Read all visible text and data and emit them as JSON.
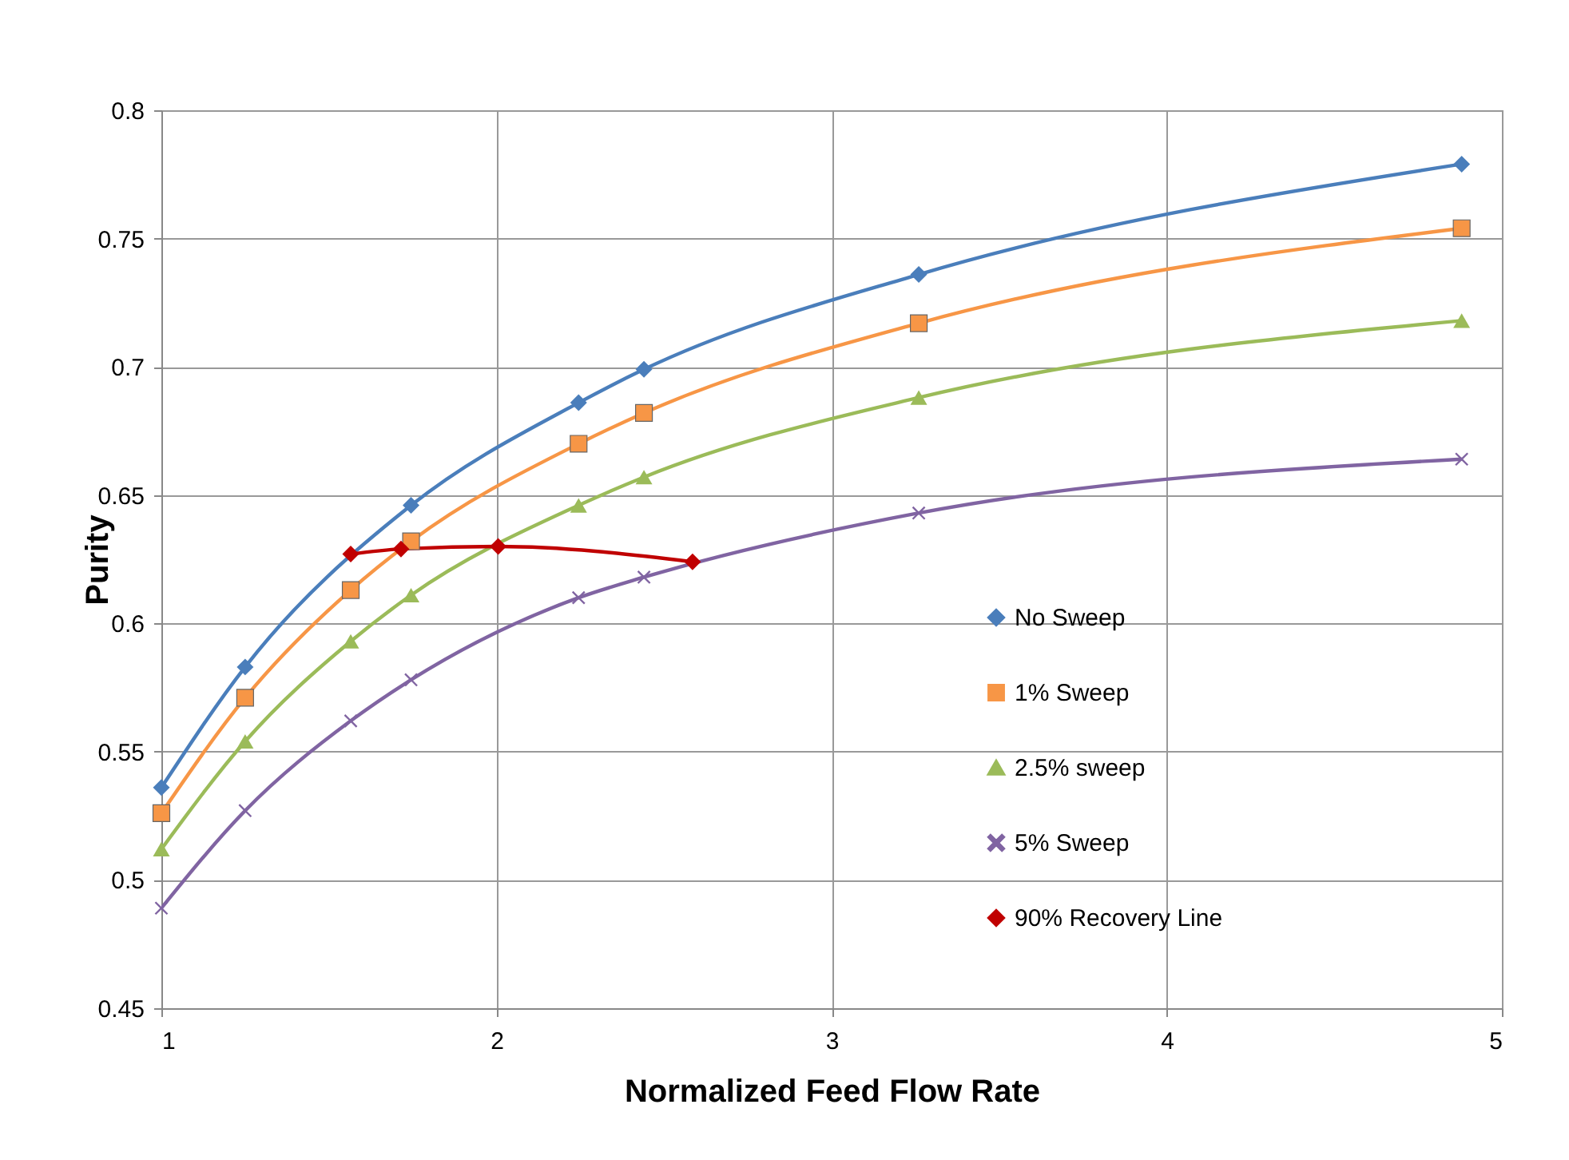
{
  "chart_data": {
    "type": "line",
    "xlabel": "Normalized Feed Flow Rate",
    "ylabel": "Purity",
    "x": [
      1,
      1.25,
      1.565,
      1.745,
      2.245,
      2.44,
      3.26,
      4.88
    ],
    "series": [
      {
        "name": "No Sweep",
        "color": "#4a7ebb",
        "marker": "diamond",
        "x": [
          1,
          1.25,
          1.745,
          2.245,
          2.44,
          3.26,
          4.88
        ],
        "values": [
          0.536,
          0.583,
          0.646,
          0.686,
          0.699,
          0.736,
          0.779
        ]
      },
      {
        "name": "1% Sweep",
        "color": "#f79646",
        "marker": "square",
        "values": [
          0.526,
          0.571,
          0.613,
          0.632,
          0.67,
          0.682,
          0.717,
          0.754
        ]
      },
      {
        "name": "2.5% sweep",
        "color": "#9bbb59",
        "marker": "triangle",
        "values": [
          0.512,
          0.554,
          0.593,
          0.611,
          0.646,
          0.657,
          0.688,
          0.718
        ]
      },
      {
        "name": "5% Sweep",
        "color": "#8064a2",
        "marker": "cross",
        "values": [
          0.489,
          0.527,
          0.562,
          0.578,
          0.61,
          0.618,
          0.643,
          0.664
        ]
      },
      {
        "name": "90% Recovery Line",
        "color": "#c00000",
        "marker": "diamond",
        "x": [
          1.565,
          1.715,
          2.005,
          2.585
        ],
        "values": [
          0.627,
          0.629,
          0.63,
          0.624
        ]
      }
    ],
    "xlim": [
      1,
      5
    ],
    "xticks": [
      1,
      2,
      3,
      4,
      5
    ],
    "ylim": [
      0.45,
      0.8
    ],
    "yticks": [
      0.45,
      0.5,
      0.55,
      0.6,
      0.65,
      0.7,
      0.75,
      0.8
    ],
    "grid": true,
    "legend": "right",
    "line_style": "solid"
  }
}
